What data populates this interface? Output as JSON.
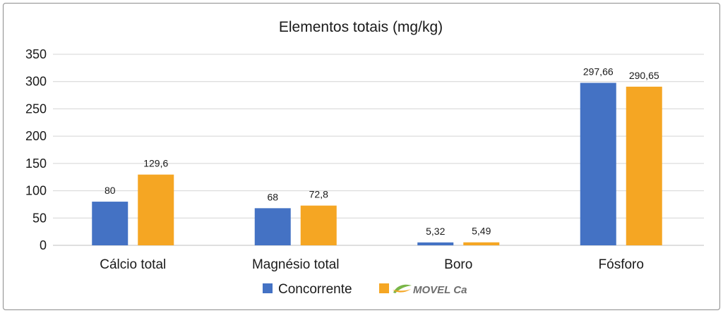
{
  "chart_data": {
    "type": "bar",
    "title": "Elementos totais (mg/kg)",
    "categories": [
      "Cálcio total",
      "Magnésio total",
      "Boro",
      "Fósforo"
    ],
    "series": [
      {
        "name": "Concorrente",
        "color": "#4472c4",
        "values": [
          80,
          68,
          5.32,
          297.66
        ],
        "labels": [
          "80",
          "68",
          "5,32",
          "297,66"
        ]
      },
      {
        "name": "MOVEL Ca",
        "color": "#f5a623",
        "values": [
          129.6,
          72.8,
          5.49,
          290.65
        ],
        "labels": [
          "129,6",
          "72,8",
          "5,49",
          "290,65"
        ]
      }
    ],
    "ylim": [
      0,
      350
    ],
    "yticks": [
      0,
      50,
      100,
      150,
      200,
      250,
      300,
      350
    ],
    "grid": true,
    "legend_position": "bottom",
    "legend_brand_icon": "leaf-swoosh-logo-icon"
  }
}
